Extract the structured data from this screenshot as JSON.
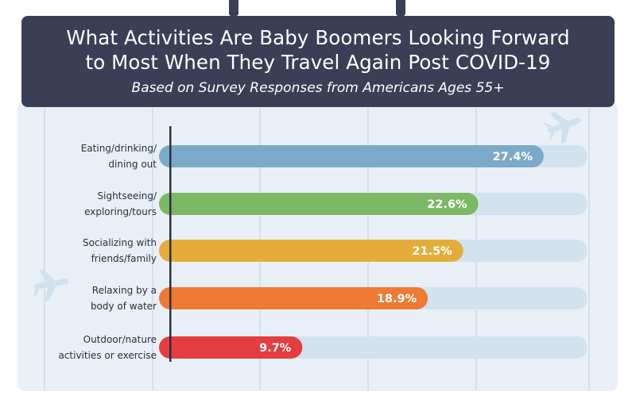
{
  "header": {
    "title_line1": "What Activities Are Baby Boomers Looking Forward",
    "title_line2": "to Most When They Travel Again Post COVID-19",
    "subtitle": "Based on Survey Responses from Americans Ages 55+"
  },
  "chart_data": {
    "type": "bar",
    "orientation": "horizontal",
    "categories": [
      [
        "Eating/drinking/",
        "dining out"
      ],
      [
        "Sightseeing/",
        "exploring/tours"
      ],
      [
        "Socializing with",
        "friends/family"
      ],
      [
        "Relaxing by a",
        "body of water"
      ],
      [
        "Outdoor/nature",
        "activities or exercise"
      ]
    ],
    "values": [
      27.4,
      22.6,
      21.5,
      18.9,
      9.7
    ],
    "value_labels": [
      "27.4%",
      "22.6%",
      "21.5%",
      "18.9%",
      "9.7%"
    ],
    "colors": [
      "#7ba9c9",
      "#7cb865",
      "#e4ad3b",
      "#ee7a34",
      "#e33d3f"
    ],
    "track_color": "#d3e2ef",
    "xlim": [
      0,
      40
    ],
    "grid": true
  }
}
